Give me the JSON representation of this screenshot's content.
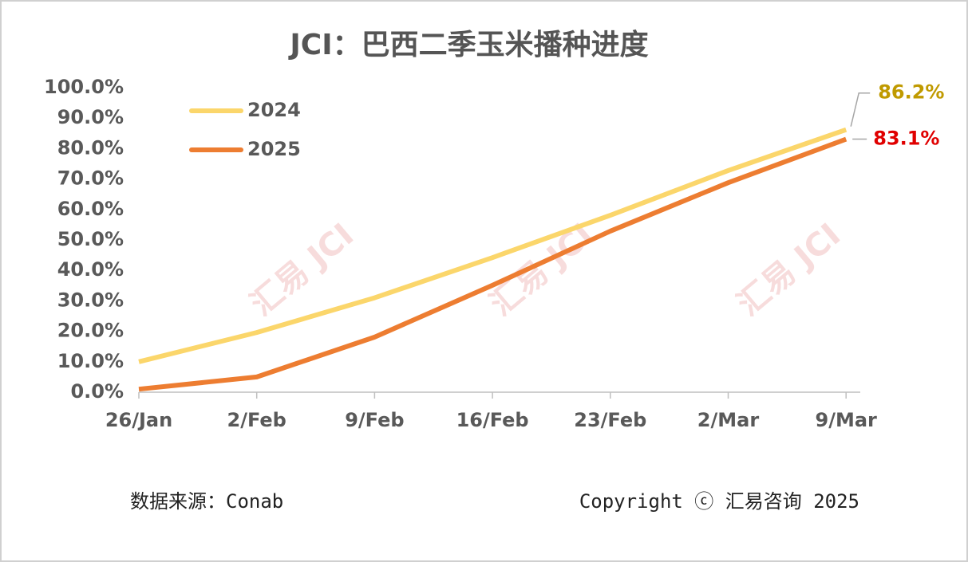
{
  "chart_data": {
    "type": "line",
    "title": "JCI：巴西二季玉米播种进度",
    "categories": [
      "26/Jan",
      "2/Feb",
      "9/Feb",
      "16/Feb",
      "23/Feb",
      "2/Mar",
      "9/Mar"
    ],
    "series": [
      {
        "name": "2024",
        "color": "#fbd66b",
        "label_color": "#c09a00",
        "values": [
          10,
          19.6,
          31,
          44.2,
          58.1,
          72.8,
          86.2
        ],
        "value_labels": [
          null,
          null,
          null,
          null,
          null,
          null,
          "86.2%"
        ]
      },
      {
        "name": "2025",
        "color": "#ed7d31",
        "label_color": "#e00000",
        "values": [
          1,
          5,
          18.1,
          35.1,
          52.9,
          68.8,
          83.1
        ],
        "value_labels": [
          null,
          null,
          null,
          null,
          null,
          null,
          "83.1%"
        ]
      }
    ],
    "ylim": [
      0,
      100
    ],
    "yticks": [
      {
        "value": 0,
        "label": "0.0%"
      },
      {
        "value": 10,
        "label": "10.0%"
      },
      {
        "value": 20,
        "label": "20.0%"
      },
      {
        "value": 30,
        "label": "30.0%"
      },
      {
        "value": 40,
        "label": "40.0%"
      },
      {
        "value": 50,
        "label": "50.0%"
      },
      {
        "value": 60,
        "label": "60.0%"
      },
      {
        "value": 70,
        "label": "70.0%"
      },
      {
        "value": 80,
        "label": "80.0%"
      },
      {
        "value": 90,
        "label": "90.0%"
      },
      {
        "value": 100,
        "label": "100.0%"
      }
    ],
    "grid": false,
    "watermark": "汇易 JCI",
    "source": "数据来源：Conab",
    "copyright": "Copyright ⓒ 汇易咨询 2025"
  }
}
